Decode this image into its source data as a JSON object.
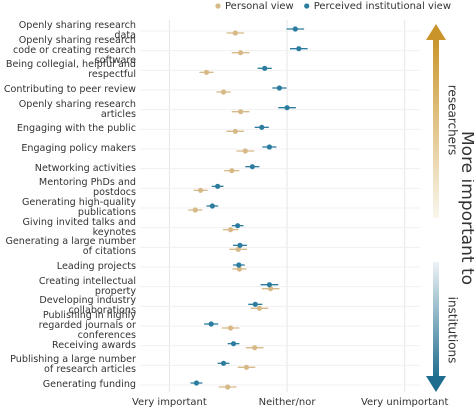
{
  "chart_data": {
    "type": "dot-errorbar",
    "categories": [
      "Openly sharing research data",
      "Openly sharing research code or creating research software",
      "Being collegial, helpful and respectful",
      "Contributing to peer review",
      "Openly sharing research articles",
      "Engaging with the public",
      "Engaging policy makers",
      "Networking activities",
      "Mentoring PhDs and postdocs",
      "Generating high-quality publications",
      "Giving invited talks and keynotes",
      "Generating a large number of citations",
      "Leading projects",
      "Creating intellectual property",
      "Developing industry collaborations",
      "Publishing in highly regarded journals or conferences",
      "Receiving awards",
      "Publishing a large number of research articles",
      "Generating funding"
    ],
    "series": [
      {
        "name": "Personal view",
        "color": "#d6b987",
        "values": [
          2.12,
          2.21,
          1.63,
          1.92,
          2.21,
          2.12,
          2.29,
          2.06,
          1.53,
          1.44,
          2.04,
          2.17,
          2.19,
          2.72,
          2.53,
          2.04,
          2.45,
          2.31,
          1.99
        ],
        "errors": [
          0.15,
          0.15,
          0.12,
          0.12,
          0.15,
          0.15,
          0.15,
          0.13,
          0.12,
          0.12,
          0.13,
          0.15,
          0.12,
          0.15,
          0.15,
          0.15,
          0.15,
          0.15,
          0.15
        ]
      },
      {
        "name": "Perceived institutional view",
        "color": "#2b7c9e",
        "values": [
          3.14,
          3.2,
          2.62,
          2.87,
          3.0,
          2.57,
          2.7,
          2.41,
          1.82,
          1.73,
          2.16,
          2.2,
          2.18,
          2.7,
          2.46,
          1.71,
          2.09,
          1.92,
          1.46
        ],
        "errors": [
          0.15,
          0.15,
          0.12,
          0.12,
          0.15,
          0.12,
          0.12,
          0.12,
          0.1,
          0.1,
          0.1,
          0.12,
          0.1,
          0.15,
          0.12,
          0.12,
          0.1,
          0.1,
          0.1
        ]
      }
    ],
    "xlim": [
      0.5,
      5.6
    ],
    "xticks": [
      {
        "value": 1,
        "label": "Very important"
      },
      {
        "value": 3,
        "label": "Neither/nor"
      },
      {
        "value": 5,
        "label": "Very unimportant"
      }
    ],
    "grid": true,
    "legend": "top",
    "side_annotation": {
      "main": "More important to",
      "top": "researchers",
      "bottom": "institutions"
    }
  }
}
